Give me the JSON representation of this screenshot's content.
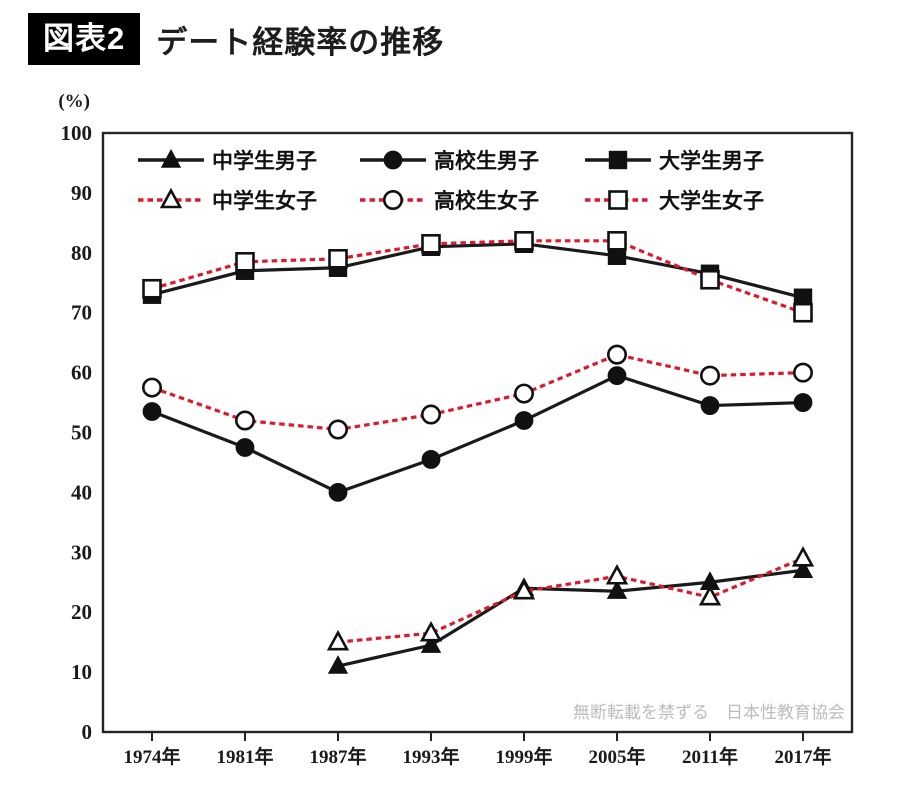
{
  "header": {
    "badge": "図表2",
    "title": "デート経験率の推移"
  },
  "chart_data": {
    "type": "line",
    "title": "デート経験率の推移",
    "unit_label": "(%)",
    "categories": [
      "1974年",
      "1981年",
      "1987年",
      "1993年",
      "1999年",
      "2005年",
      "2011年",
      "2017年"
    ],
    "y_ticks": [
      100,
      90,
      80,
      70,
      60,
      50,
      40,
      30,
      20,
      10,
      0
    ],
    "ylim": [
      0,
      100
    ],
    "grid": false,
    "legend_position": "top-inside",
    "line_colors": {
      "male": "#1a1a1a",
      "female": "#e0182b"
    },
    "marker_stroke": "#111111",
    "watermark": "無断転載を禁ずる　日本性教育協会",
    "series": [
      {
        "key": "jhs-boys",
        "name": "中学生男子",
        "group": "male",
        "line": "solid",
        "marker": "triangle",
        "marker_fill": "filled",
        "values": [
          null,
          null,
          11,
          14.5,
          24,
          23.5,
          25,
          27
        ]
      },
      {
        "key": "hs-boys",
        "name": "高校生男子",
        "group": "male",
        "line": "solid",
        "marker": "circle",
        "marker_fill": "filled",
        "values": [
          53.5,
          47.5,
          40,
          45.5,
          52,
          59.5,
          54.5,
          55
        ]
      },
      {
        "key": "univ-boys",
        "name": "大学生男子",
        "group": "male",
        "line": "solid",
        "marker": "square",
        "marker_fill": "filled",
        "values": [
          73,
          77,
          77.5,
          81,
          81.5,
          79.5,
          76.5,
          72.5
        ]
      },
      {
        "key": "jhs-girls",
        "name": "中学生女子",
        "group": "female",
        "line": "dashed",
        "marker": "triangle",
        "marker_fill": "open",
        "values": [
          null,
          null,
          15,
          16.5,
          23.5,
          26,
          22.5,
          29
        ]
      },
      {
        "key": "hs-girls",
        "name": "高校生女子",
        "group": "female",
        "line": "dashed",
        "marker": "circle",
        "marker_fill": "open",
        "values": [
          57.5,
          52,
          50.5,
          53,
          56.5,
          63,
          59.5,
          60
        ]
      },
      {
        "key": "univ-girls",
        "name": "大学生女子",
        "group": "female",
        "line": "dashed",
        "marker": "square",
        "marker_fill": "open",
        "values": [
          74,
          78.5,
          79,
          81.5,
          82,
          82,
          75.5,
          70
        ]
      }
    ],
    "legend_rows": [
      [
        "jhs-boys",
        "hs-boys",
        "univ-boys"
      ],
      [
        "jhs-girls",
        "hs-girls",
        "univ-girls"
      ]
    ]
  }
}
